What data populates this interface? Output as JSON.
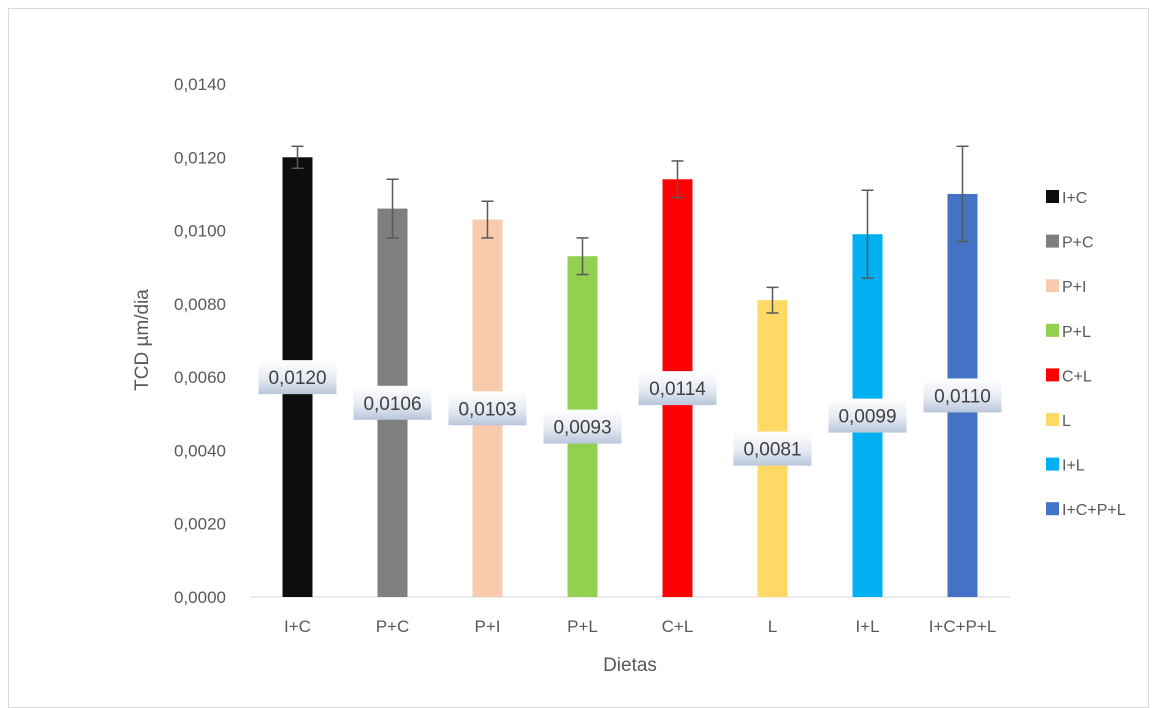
{
  "chart_data": {
    "type": "bar",
    "title": "",
    "xlabel": "Dietas",
    "ylabel": "TCD µm/dia",
    "ylim": [
      0,
      0.014
    ],
    "yticks": [
      "0,0000",
      "0,0020",
      "0,0040",
      "0,0060",
      "0,0080",
      "0,0100",
      "0,0120",
      "0,0140"
    ],
    "categories": [
      "I+C",
      "P+C",
      "P+I",
      "P+L",
      "C+L",
      "L",
      "I+L",
      "I+C+P+L"
    ],
    "values": [
      0.012,
      0.0106,
      0.0103,
      0.0093,
      0.0114,
      0.0081,
      0.0099,
      0.011
    ],
    "value_labels": [
      "0,0120",
      "0,0106",
      "0,0103",
      "0,0093",
      "0,0114",
      "0,0081",
      "0,0099",
      "0,0110"
    ],
    "error": [
      0.0003,
      0.0008,
      0.0005,
      0.0005,
      0.0005,
      0.00035,
      0.0012,
      0.0013
    ],
    "colors": [
      "#0d0d0d",
      "#7f7f7f",
      "#f8cbad",
      "#92d050",
      "#ff0000",
      "#ffd966",
      "#00b0f0",
      "#4472c4"
    ],
    "legend": [
      "I+C",
      "P+C",
      "P+I",
      "P+L",
      "C+L",
      "L",
      "I+L",
      "I+C+P+L"
    ],
    "legend_position": "right",
    "grid": false
  }
}
